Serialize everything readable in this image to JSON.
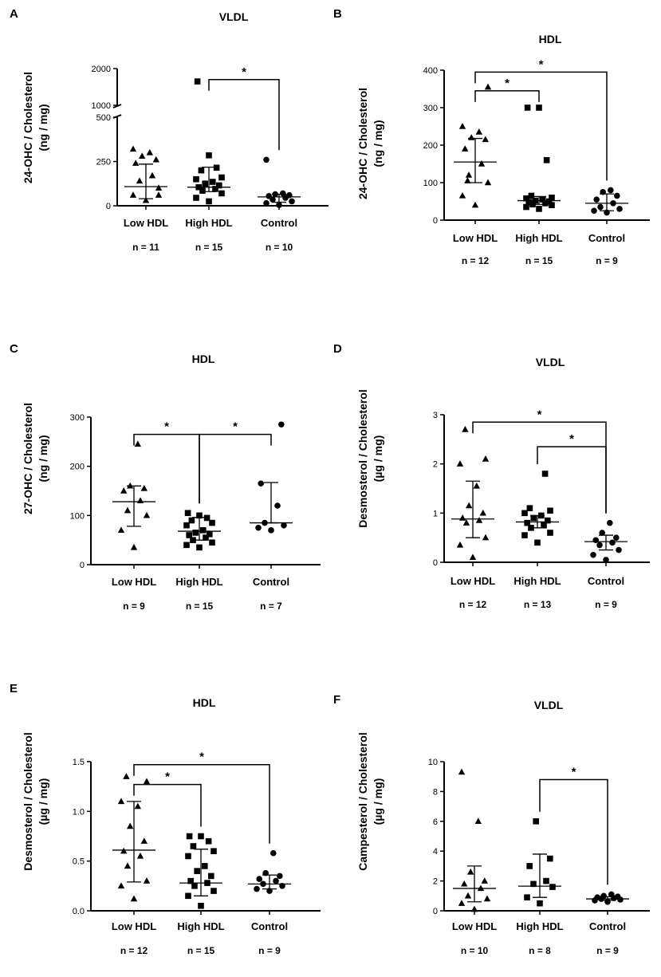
{
  "chart_data": [
    {
      "panel": "A",
      "type": "scatter",
      "title": "VLDL",
      "ylabel_lines": [
        "24-OHC / Cholesterol",
        "(ng / mg)"
      ],
      "y_segments": [
        {
          "range": [
            0,
            500
          ],
          "ticks": [
            0,
            250,
            500
          ]
        },
        {
          "range": [
            1000,
            2000
          ],
          "ticks": [
            1000,
            2000
          ]
        }
      ],
      "categories": [
        "Low HDL",
        "High HDL",
        "Control"
      ],
      "n_labels": [
        "n = 11",
        "n = 15",
        "n = 10"
      ],
      "markers": [
        "triangle",
        "square",
        "circle"
      ],
      "points": [
        [
          30,
          60,
          100,
          140,
          170,
          240,
          260,
          280,
          300,
          320,
          60
        ],
        [
          25,
          45,
          70,
          85,
          95,
          105,
          115,
          125,
          135,
          150,
          160,
          200,
          215,
          285,
          1650
        ],
        [
          5,
          15,
          25,
          35,
          45,
          55,
          60,
          65,
          70,
          260
        ]
      ],
      "summary": [
        {
          "median": 108,
          "q1": 40,
          "q3": 235
        },
        {
          "median": 105,
          "q1": 80,
          "q3": 218
        },
        {
          "median": 50,
          "q1": 20,
          "q3": 65
        }
      ],
      "brackets": [
        {
          "from": 1,
          "to": 2,
          "label": "*",
          "level": 1700
        }
      ]
    },
    {
      "panel": "B",
      "type": "scatter",
      "title": "HDL",
      "ylabel_lines": [
        "24-OHC / Cholesterol",
        "(ng / mg)"
      ],
      "ylim": [
        0,
        400
      ],
      "yticks": [
        0,
        100,
        200,
        300,
        400
      ],
      "categories": [
        "Low HDL",
        "High HDL",
        "Control"
      ],
      "n_labels": [
        "n = 12",
        "n = 15",
        "n = 9"
      ],
      "markers": [
        "triangle",
        "square",
        "circle"
      ],
      "points": [
        [
          40,
          65,
          100,
          120,
          150,
          190,
          215,
          220,
          235,
          250,
          355,
          105
        ],
        [
          30,
          35,
          40,
          42,
          45,
          48,
          50,
          52,
          55,
          58,
          60,
          65,
          160,
          300,
          300
        ],
        [
          20,
          25,
          30,
          35,
          45,
          55,
          65,
          75,
          80
        ]
      ],
      "summary": [
        {
          "median": 155,
          "q1": 100,
          "q3": 218
        },
        {
          "median": 52,
          "q1": 42,
          "q3": 63
        },
        {
          "median": 45,
          "q1": 25,
          "q3": 70
        }
      ],
      "brackets": [
        {
          "from": 0,
          "to": 1,
          "label": "*",
          "level": 345
        },
        {
          "from": 0,
          "to": 2,
          "label": "*",
          "level": 395
        }
      ]
    },
    {
      "panel": "C",
      "type": "scatter",
      "title": "HDL",
      "ylabel_lines": [
        "27-OHC / Cholesterol",
        "(ng / mg)"
      ],
      "ylim": [
        0,
        300
      ],
      "yticks": [
        0,
        100,
        200,
        300
      ],
      "categories": [
        "Low HDL",
        "High HDL",
        "Control"
      ],
      "n_labels": [
        "n = 9",
        "n = 15",
        "n = 7"
      ],
      "markers": [
        "triangle",
        "square",
        "circle"
      ],
      "points": [
        [
          35,
          70,
          100,
          110,
          130,
          150,
          155,
          160,
          245
        ],
        [
          35,
          40,
          45,
          50,
          55,
          60,
          62,
          65,
          70,
          80,
          85,
          90,
          95,
          100,
          105
        ],
        [
          70,
          75,
          80,
          85,
          120,
          165,
          285
        ]
      ],
      "summary": [
        {
          "median": 128,
          "q1": 78,
          "q3": 160
        },
        {
          "median": 68,
          "q1": 50,
          "q3": 96
        },
        {
          "median": 85,
          "q1": 85,
          "q3": 167
        }
      ],
      "brackets": [
        {
          "from": 0,
          "to": 1,
          "label": "*",
          "level": 265
        },
        {
          "from": 1,
          "to": 2,
          "label": "*",
          "level": 265
        }
      ]
    },
    {
      "panel": "D",
      "type": "scatter",
      "title": "VLDL",
      "ylabel_lines": [
        "Desmosterol / Cholesterol",
        "(µg / mg)"
      ],
      "ylim": [
        0,
        3
      ],
      "yticks": [
        0,
        1,
        2,
        3
      ],
      "categories": [
        "Low HDL",
        "High HDL",
        "Control"
      ],
      "n_labels": [
        "n = 12",
        "n = 13",
        "n = 9"
      ],
      "markers": [
        "triangle",
        "square",
        "circle"
      ],
      "points": [
        [
          0.1,
          0.35,
          0.5,
          0.8,
          0.85,
          0.9,
          1.0,
          1.15,
          1.55,
          2.0,
          2.1,
          2.7
        ],
        [
          0.4,
          0.55,
          0.6,
          0.7,
          0.75,
          0.8,
          0.85,
          0.9,
          0.95,
          1.0,
          1.05,
          1.1,
          1.8
        ],
        [
          0.05,
          0.15,
          0.25,
          0.35,
          0.4,
          0.45,
          0.5,
          0.6,
          0.8
        ]
      ],
      "summary": [
        {
          "median": 0.88,
          "q1": 0.5,
          "q3": 1.65
        },
        {
          "median": 0.82,
          "q1": 0.7,
          "q3": 0.95
        },
        {
          "median": 0.42,
          "q1": 0.25,
          "q3": 0.55
        }
      ],
      "brackets": [
        {
          "from": 0,
          "to": 2,
          "label": "*",
          "level": 2.85
        },
        {
          "from": 1,
          "to": 2,
          "label": "*",
          "level": 2.35
        }
      ]
    },
    {
      "panel": "E",
      "type": "scatter",
      "title": "HDL",
      "ylabel_lines": [
        "Desmosterol / Cholesterol",
        "(µg / mg)"
      ],
      "ylim": [
        0,
        1.5
      ],
      "yticks": [
        0.0,
        0.5,
        1.0,
        1.5
      ],
      "ytick_labels": [
        "0.0",
        "0.5",
        "1.0",
        "1.5"
      ],
      "categories": [
        "Low HDL",
        "High HDL",
        "Control"
      ],
      "n_labels": [
        "n = 12",
        "n = 15",
        "n = 9"
      ],
      "markers": [
        "triangle",
        "square",
        "circle"
      ],
      "points": [
        [
          0.12,
          0.25,
          0.3,
          0.45,
          0.55,
          0.6,
          0.7,
          0.85,
          1.05,
          1.1,
          1.3,
          1.35
        ],
        [
          0.05,
          0.15,
          0.2,
          0.25,
          0.28,
          0.3,
          0.35,
          0.4,
          0.45,
          0.55,
          0.6,
          0.65,
          0.7,
          0.75,
          0.75
        ],
        [
          0.2,
          0.22,
          0.25,
          0.27,
          0.3,
          0.32,
          0.35,
          0.38,
          0.58
        ]
      ],
      "summary": [
        {
          "median": 0.61,
          "q1": 0.29,
          "q3": 1.1
        },
        {
          "median": 0.28,
          "q1": 0.15,
          "q3": 0.62
        },
        {
          "median": 0.27,
          "q1": 0.22,
          "q3": 0.36
        }
      ],
      "brackets": [
        {
          "from": 0,
          "to": 1,
          "label": "*",
          "level": 1.27
        },
        {
          "from": 0,
          "to": 2,
          "label": "*",
          "level": 1.47
        }
      ]
    },
    {
      "panel": "F",
      "type": "scatter",
      "title": "VLDL",
      "ylabel_lines": [
        "Campesterol / Cholesterol",
        "(µg / mg)"
      ],
      "ylim": [
        0,
        10
      ],
      "yticks": [
        0,
        2,
        4,
        6,
        8,
        10
      ],
      "categories": [
        "Low HDL",
        "High HDL",
        "Control"
      ],
      "n_labels": [
        "n = 10",
        "n = 8",
        "n = 9"
      ],
      "markers": [
        "triangle",
        "square",
        "circle"
      ],
      "points": [
        [
          0.1,
          0.5,
          0.8,
          1.0,
          1.5,
          1.8,
          2.0,
          2.6,
          6.0,
          9.3
        ],
        [
          0.5,
          0.9,
          1.6,
          1.8,
          2.0,
          3.0,
          3.5,
          6.0
        ],
        [
          0.6,
          0.7,
          0.75,
          0.8,
          0.85,
          0.9,
          0.95,
          1.0,
          1.1
        ]
      ],
      "summary": [
        {
          "median": 1.5,
          "q1": 0.6,
          "q3": 3.0
        },
        {
          "median": 1.65,
          "q1": 0.9,
          "q3": 3.8
        },
        {
          "median": 0.8,
          "q1": 0.7,
          "q3": 0.95
        }
      ],
      "brackets": [
        {
          "from": 1,
          "to": 2,
          "label": "*",
          "level": 8.8
        }
      ]
    }
  ]
}
